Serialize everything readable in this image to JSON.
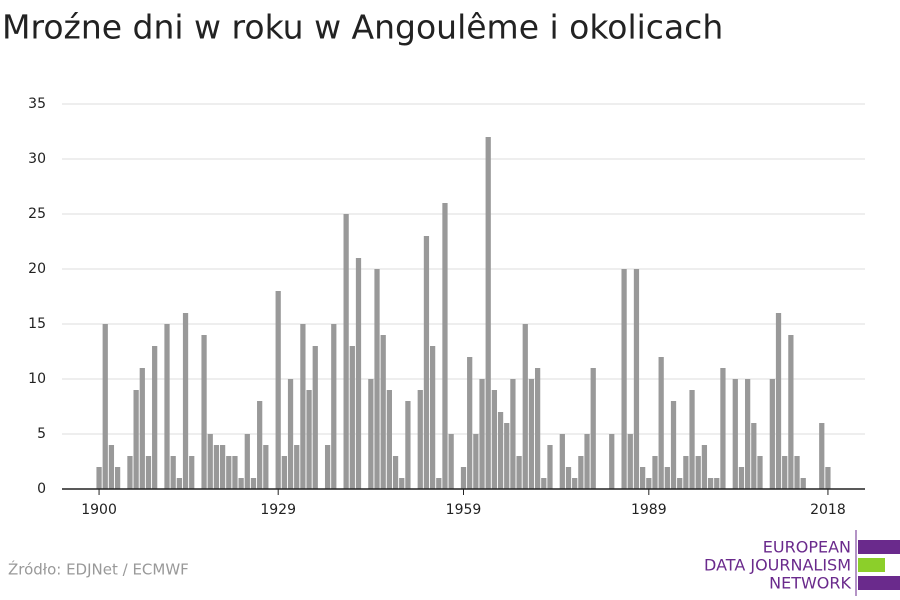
{
  "chart_data": {
    "type": "bar",
    "title": "Mroźne dni w roku w Angoulême i okolicach",
    "source": "Źródło: EDJNet / ECMWF",
    "logo": [
      "EUROPEAN",
      "DATA JOURNALISM",
      "NETWORK"
    ],
    "color": "#999999",
    "grid": true,
    "x": [
      1900,
      1901,
      1902,
      1903,
      1904,
      1905,
      1906,
      1907,
      1908,
      1909,
      1910,
      1911,
      1912,
      1913,
      1914,
      1915,
      1916,
      1917,
      1918,
      1919,
      1920,
      1921,
      1922,
      1923,
      1924,
      1925,
      1926,
      1927,
      1928,
      1929,
      1930,
      1931,
      1932,
      1933,
      1934,
      1935,
      1936,
      1937,
      1938,
      1939,
      1940,
      1941,
      1942,
      1943,
      1944,
      1945,
      1946,
      1947,
      1948,
      1949,
      1950,
      1951,
      1952,
      1953,
      1954,
      1955,
      1956,
      1957,
      1958,
      1959,
      1960,
      1961,
      1962,
      1963,
      1964,
      1965,
      1966,
      1967,
      1968,
      1969,
      1970,
      1971,
      1972,
      1973,
      1974,
      1975,
      1976,
      1977,
      1978,
      1979,
      1980,
      1981,
      1982,
      1983,
      1984,
      1985,
      1986,
      1987,
      1988,
      1989,
      1990,
      1991,
      1992,
      1993,
      1994,
      1995,
      1996,
      1997,
      1998,
      1999,
      2000,
      2001,
      2002,
      2003,
      2004,
      2005,
      2006,
      2007,
      2008,
      2009,
      2010,
      2011,
      2012,
      2013,
      2014,
      2015,
      2016,
      2017,
      2018
    ],
    "values": [
      2,
      15,
      4,
      2,
      0,
      3,
      9,
      11,
      3,
      13,
      0,
      15,
      3,
      1,
      16,
      3,
      0,
      14,
      5,
      4,
      4,
      3,
      3,
      1,
      5,
      1,
      8,
      4,
      0,
      18,
      3,
      10,
      4,
      15,
      9,
      13,
      0,
      4,
      15,
      0,
      25,
      13,
      21,
      0,
      10,
      20,
      14,
      9,
      3,
      1,
      8,
      0,
      9,
      23,
      13,
      1,
      26,
      5,
      0,
      2,
      12,
      5,
      10,
      32,
      9,
      7,
      6,
      10,
      3,
      15,
      10,
      11,
      1,
      4,
      0,
      5,
      2,
      1,
      3,
      5,
      11,
      0,
      0,
      5,
      0,
      20,
      5,
      20,
      2,
      1,
      3,
      12,
      2,
      8,
      1,
      3,
      9,
      3,
      4,
      1,
      1,
      11,
      0,
      10,
      2,
      10,
      6,
      3,
      0,
      10,
      16,
      3,
      14,
      3,
      1,
      0,
      0,
      6,
      2
    ],
    "xlim": [
      1894,
      2024
    ],
    "xticks": [
      1900,
      1929,
      1959,
      1989,
      2018
    ],
    "ylim": [
      0,
      35
    ],
    "yticks": [
      0,
      5,
      10,
      15,
      20,
      25,
      30,
      35
    ]
  }
}
